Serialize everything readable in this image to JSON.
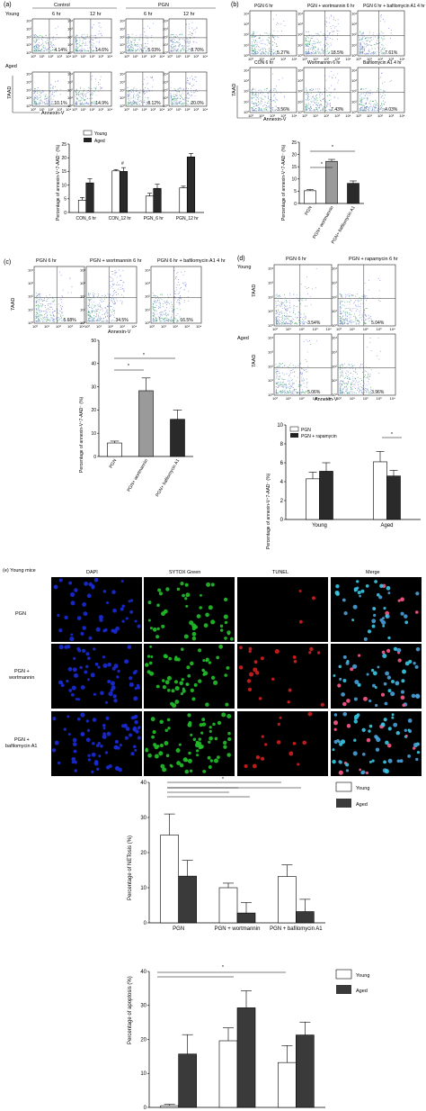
{
  "panel_a": {
    "label": "(a)",
    "group_top": "Young",
    "group_bottom": "Aged",
    "header_control": "Control",
    "header_pgn": "PGN",
    "times": [
      "6 hr",
      "12 hr",
      "6 hr",
      "12 hr"
    ],
    "young_pcts": [
      "4.14%",
      "14.6%",
      "5.03%",
      "8.70%"
    ],
    "aged_pcts": [
      "10.1%",
      "14.9%",
      "8.12%",
      "20.0%"
    ],
    "axis_y": "7AAD",
    "axis_x": "Annexin-V",
    "ticks": [
      "10⁰",
      "10¹",
      "10²",
      "10³",
      "10⁴"
    ],
    "chart_ylabel": "Percentage of annexin-V⁺7-AAD⁻ (%)",
    "legend": [
      "Young",
      "Aged"
    ],
    "hash_mark": "#"
  },
  "panel_b": {
    "label": "(b)",
    "top_titles": [
      "PGN 6 hr",
      "PGN + wortmannin 6 hr",
      "PGN 6 hr + bafilomycin A1 4 hr"
    ],
    "top_pcts": [
      "5.27%",
      "18.5%",
      "7.61%"
    ],
    "bottom_titles": [
      "CON 6 hr",
      "Wortmannin 6 hr",
      "Bafilomycin A1 4 hr"
    ],
    "bottom_pcts": [
      "3.56%",
      "7.43%",
      "4.03%"
    ],
    "axis_y": "7AAD",
    "axis_x": "Annexin-V",
    "chart_ylabel": "Percentage of annexin-V⁺7-AAD⁻ (%)",
    "star": "*"
  },
  "panel_c": {
    "label": "(c)",
    "titles": [
      "PGN 6 hr",
      "PGN + wortmannin 6 hr",
      "PGN 6 hr + bafilomycin A1 4 hr"
    ],
    "pcts": [
      "5.68%",
      "34.5%",
      "16.5%"
    ],
    "axis_y": "7AAD",
    "axis_x": "Annexin-V",
    "chart_ylabel": "Percentage of annexin-V⁺7-AAD⁻ (%)",
    "star": "*"
  },
  "panel_d": {
    "label": "(d)",
    "titles": [
      "PGN 6 hr",
      "PGN + rapamycin 6 hr"
    ],
    "row_labels": [
      "Young",
      "Aged"
    ],
    "young_pcts": [
      "3.54%",
      "5.04%"
    ],
    "aged_pcts": [
      "5.06%",
      "3.96%"
    ],
    "axis_y": "7AAD",
    "axis_x": "Annexin-V",
    "chart_ylabel": "Percentage of annexin-V⁺7-AAD⁻ (%)",
    "legend": [
      "PGN",
      "PGN + rapamycin"
    ],
    "star": "*"
  },
  "panel_e": {
    "label": "(e) Young mice",
    "columns": [
      "DAPI",
      "SYTOX Green",
      "TUNEL",
      "Merge"
    ],
    "rows": [
      "PGN",
      "PGN + wortmannin",
      "PGN + bafilomycin A1"
    ],
    "colors": {
      "dapi": "#1a2bd6",
      "sytox": "#22c02a",
      "tunel": "#d41e1e",
      "bg": "#000000"
    },
    "netosis_ylabel": "Percentage of NETosis (%)",
    "apoptosis_ylabel": "Percentage of apoptosis (%)",
    "legend": [
      "Young",
      "Aged"
    ],
    "star": "*"
  },
  "chart_data": [
    {
      "type": "bar",
      "id": "a",
      "categories": [
        "CON_6 hr",
        "CON_12 hr",
        "PGN_6 hr",
        "PGN_12 hr"
      ],
      "series": [
        {
          "name": "Young",
          "values": [
            4.5,
            15.2,
            6.0,
            9.0
          ],
          "errors": [
            1.0,
            0.5,
            1.0,
            0.6
          ]
        },
        {
          "name": "Aged",
          "values": [
            10.8,
            15.0,
            8.8,
            20.3
          ],
          "errors": [
            1.5,
            1.4,
            1.5,
            1.3
          ]
        }
      ],
      "ylim": [
        0,
        25
      ],
      "yticks": [
        0,
        5,
        10,
        15,
        20,
        25
      ]
    },
    {
      "type": "bar",
      "id": "b",
      "categories": [
        "PGN",
        "PGN+ wortmannin",
        "PGN+ bafilomycin A1"
      ],
      "values": [
        5.2,
        17.2,
        8.2
      ],
      "errors": [
        0.5,
        0.8,
        1.0
      ],
      "ylim": [
        0,
        25
      ],
      "yticks": [
        0,
        5,
        10,
        15,
        20,
        25
      ]
    },
    {
      "type": "bar",
      "id": "c",
      "categories": [
        "PGN",
        "PGN+ wortmannin",
        "PGN+ bafilomycin A1"
      ],
      "values": [
        5.8,
        28.3,
        16.0
      ],
      "errors": [
        0.8,
        5.5,
        4.0
      ],
      "ylim": [
        0,
        50
      ],
      "yticks": [
        0,
        10,
        20,
        30,
        40,
        50
      ]
    },
    {
      "type": "bar",
      "id": "d",
      "categories": [
        "Young",
        "Aged"
      ],
      "series": [
        {
          "name": "PGN",
          "values": [
            4.3,
            6.1
          ],
          "errors": [
            0.7,
            1.1
          ]
        },
        {
          "name": "PGN + rapamycin",
          "values": [
            5.1,
            4.6
          ],
          "errors": [
            0.9,
            0.6
          ]
        }
      ],
      "ylim": [
        0,
        10
      ],
      "yticks": [
        0,
        2,
        4,
        6,
        8,
        10
      ]
    },
    {
      "type": "bar",
      "id": "netosis",
      "categories": [
        "PGN",
        "PGN + wortmannin",
        "PGN + bafilomycin A1"
      ],
      "series": [
        {
          "name": "Young",
          "values": [
            25.0,
            10.0,
            13.2
          ],
          "errors": [
            6.0,
            1.3,
            3.3
          ]
        },
        {
          "name": "Aged",
          "values": [
            13.3,
            2.8,
            3.2
          ],
          "errors": [
            4.5,
            3.0,
            3.5
          ]
        }
      ],
      "ylim": [
        0,
        40
      ],
      "yticks": [
        0,
        10,
        20,
        30,
        40
      ]
    },
    {
      "type": "bar",
      "id": "apoptosis",
      "categories": [
        "PGN",
        "PGN + wortmannin",
        "PGN + bafilomycin A1"
      ],
      "series": [
        {
          "name": "Young",
          "values": [
            0.5,
            19.6,
            13.2
          ],
          "errors": [
            0.4,
            3.8,
            5.0
          ]
        },
        {
          "name": "Aged",
          "values": [
            15.7,
            29.3,
            21.3
          ],
          "errors": [
            5.7,
            5.0,
            3.8
          ]
        }
      ],
      "ylim": [
        0,
        40
      ],
      "yticks": [
        0,
        10,
        20,
        30,
        40
      ]
    }
  ]
}
